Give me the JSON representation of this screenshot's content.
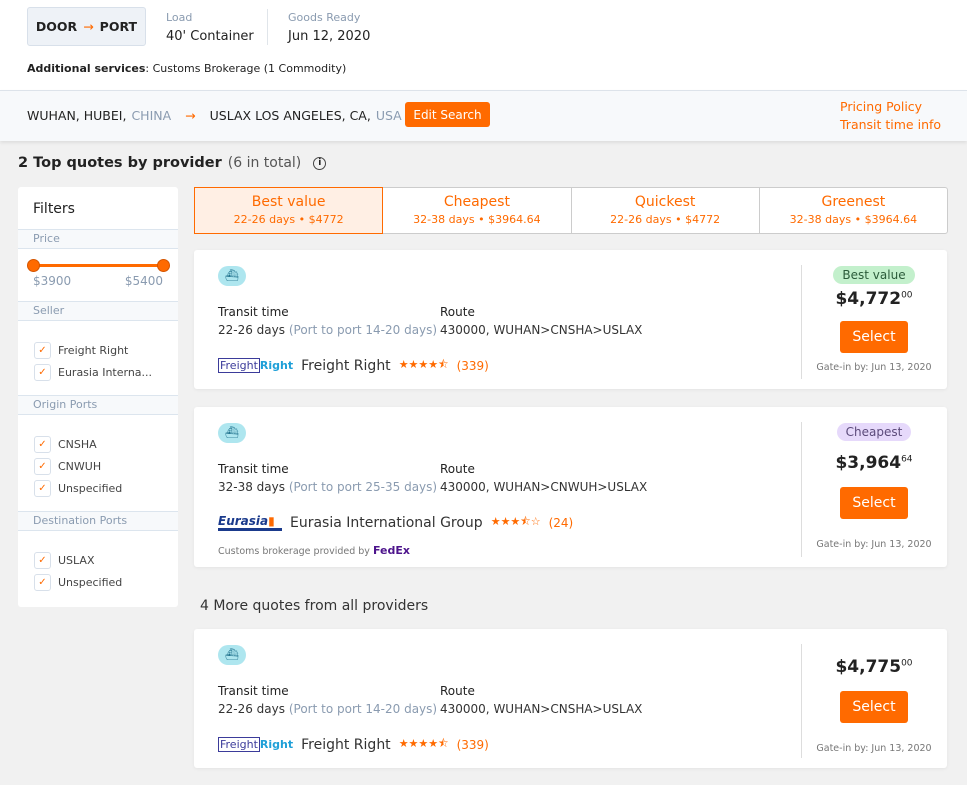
{
  "header": {
    "mode_from": "DOOR",
    "mode_to": "PORT",
    "load_label": "Load",
    "load_value": "40' Container",
    "ready_label": "Goods Ready",
    "ready_value": "Jun 12, 2020",
    "services_label": "Additional services",
    "services_value": "Customs Brokerage (1 Commodity)"
  },
  "route": {
    "origin_city": "WUHAN, HUBEI,",
    "origin_country": "CHINA",
    "dest_city": "USLAX LOS ANGELES, CA,",
    "dest_country": "USA",
    "edit_label": "Edit Search",
    "pricing_policy": "Pricing Policy",
    "transit_info": "Transit time info"
  },
  "summary": {
    "title": "2 Top quotes by provider",
    "total": "(6 in total)"
  },
  "filters": {
    "title": "Filters",
    "price_label": "Price",
    "price_min": "$3900",
    "price_max": "$5400",
    "seller_label": "Seller",
    "sellers": [
      "Freight Right",
      "Eurasia Interna..."
    ],
    "origin_label": "Origin Ports",
    "origins": [
      "CNSHA",
      "CNWUH",
      "Unspecified"
    ],
    "dest_label": "Destination Ports",
    "dests": [
      "USLAX",
      "Unspecified"
    ]
  },
  "tabs": [
    {
      "title": "Best value",
      "sub": "22-26 days • $4772"
    },
    {
      "title": "Cheapest",
      "sub": "32-38 days • $3964.64"
    },
    {
      "title": "Quickest",
      "sub": "22-26 days • $4772"
    },
    {
      "title": "Greenest",
      "sub": "32-38 days • $3964.64"
    }
  ],
  "labels": {
    "transit": "Transit time",
    "route": "Route",
    "select": "Select",
    "more": "4 More quotes from all providers",
    "customs_by": "Customs brokerage provided by",
    "fedex": "FedEx"
  },
  "quotes": [
    {
      "days": "22-26 days",
      "p2p": "(Port to port 14-20 days)",
      "route": "430000, WUHAN>CNSHA>USLAX",
      "provider": "Freight Right",
      "logo_a": "Freight",
      "logo_b": "Right",
      "stars": "★★★★⯪",
      "rating": 4.5,
      "count": "(339)",
      "badge": "Best value",
      "price": "$4,772",
      "cents": "00",
      "gate": "Gate-in by: Jun 13, 2020"
    },
    {
      "days": "32-38 days",
      "p2p": "(Port to port 25-35 days)",
      "route": "430000, WUHAN>CNWUH>USLAX",
      "provider": "Eurasia International Group",
      "logo_a": "Eurasia",
      "stars": "★★★⯪☆",
      "rating": 3.5,
      "count": "(24)",
      "badge": "Cheapest",
      "price": "$3,964",
      "cents": "64",
      "gate": "Gate-in by: Jun 13, 2020"
    },
    {
      "days": "22-26 days",
      "p2p": "(Port to port 14-20 days)",
      "route": "430000, WUHAN>CNSHA>USLAX",
      "provider": "Freight Right",
      "logo_a": "Freight",
      "logo_b": "Right",
      "stars": "★★★★⯪",
      "rating": 4.5,
      "count": "(339)",
      "price": "$4,775",
      "cents": "00",
      "gate": "Gate-in by: Jun 13, 2020"
    }
  ],
  "colors": {
    "accent": "#ff6a00",
    "best_badge": "#c3f0cc",
    "cheap_badge": "#e6d9fb"
  }
}
